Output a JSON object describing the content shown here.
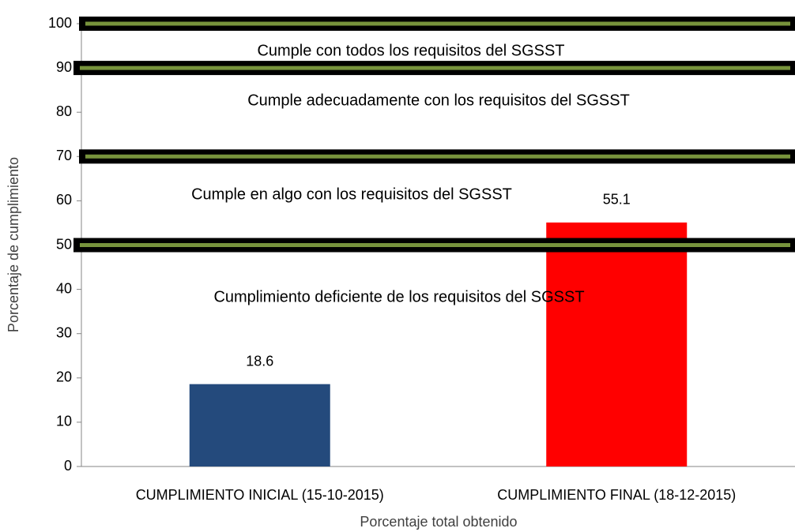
{
  "chart_data": {
    "type": "bar",
    "categories": [
      "CUMPLIMIENTO INICIAL (15-10-2015)",
      "CUMPLIMIENTO FINAL (18-12-2015)"
    ],
    "values": [
      18.6,
      55.1
    ],
    "colors": [
      "#244a7c",
      "#ff0000"
    ],
    "x_label": "Porcentaje total obtenido",
    "y_label": "Porcentaje de cumplimiento",
    "ylim": [
      0,
      100
    ],
    "yticks": [
      0,
      10,
      20,
      30,
      40,
      50,
      60,
      70,
      80,
      90,
      100
    ],
    "grid": false,
    "threshold_lines": [
      100,
      90,
      70,
      50
    ],
    "threshold_color": "#77933c",
    "annotations": [
      "Cumple con todos los requisitos del SGSST",
      "Cumple adecuadamente con los requisitos del SGSST",
      "Cumple en algo con los requisitos del SGSST",
      "Cumplimiento deficiente de los requisitos del SGSST"
    ]
  }
}
